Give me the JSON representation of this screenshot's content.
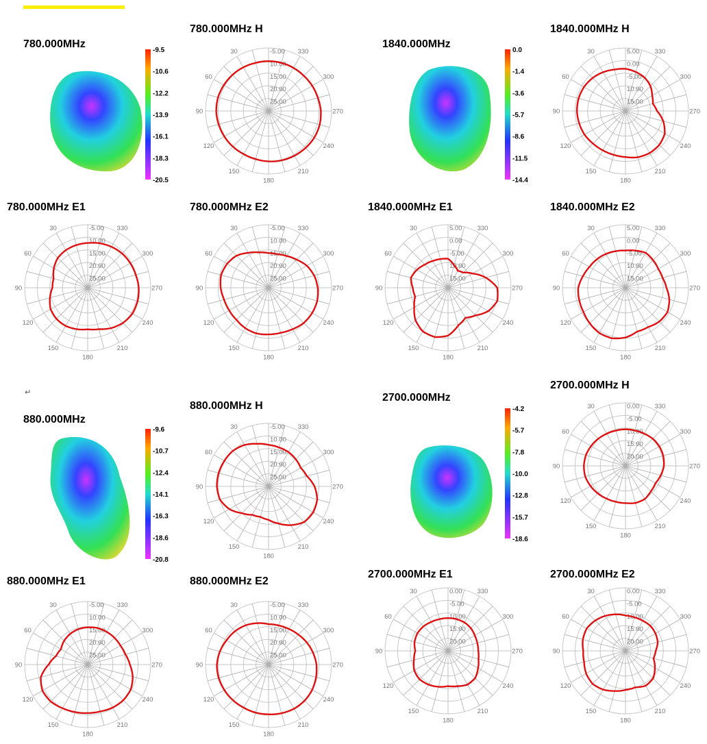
{
  "return_mark": "↵",
  "chart_data": [
    {
      "type": "polar",
      "title": "780.000MHz  H",
      "rlabels": [
        "-5.00",
        "10.00",
        "15.00",
        "20.00",
        "25.00"
      ],
      "angles": [
        "30",
        "330",
        "60",
        "300",
        "90",
        "270",
        "120",
        "240",
        "150",
        "210",
        "180"
      ],
      "radii": [
        0.79,
        0.79,
        0.8,
        0.81,
        0.82,
        0.83,
        0.83,
        0.82,
        0.81,
        0.8,
        0.79,
        0.79,
        0.8,
        0.81,
        0.82,
        0.83,
        0.84,
        0.84,
        0.83,
        0.81,
        0.8,
        0.79,
        0.79,
        0.79
      ],
      "color": "#dd1111"
    },
    {
      "type": "polar",
      "title": "1840.000MHz  H",
      "rlabels": [
        "5.00",
        "0.00",
        "-5.00",
        "10.00",
        "15.00"
      ],
      "angles": [
        "30",
        "330",
        "60",
        "300",
        "90",
        "270",
        "120",
        "240",
        "150",
        "210",
        "180"
      ],
      "radii": [
        0.67,
        0.68,
        0.71,
        0.74,
        0.76,
        0.77,
        0.77,
        0.76,
        0.75,
        0.73,
        0.72,
        0.72,
        0.73,
        0.76,
        0.77,
        0.76,
        0.72,
        0.62,
        0.5,
        0.45,
        0.49,
        0.56,
        0.61,
        0.64
      ],
      "color": "#dd1111"
    },
    {
      "type": "polar",
      "title": "780.000MHz  E1",
      "rlabels": [
        "-5.00",
        "10.00",
        "15.00",
        "20.00",
        "25.00"
      ],
      "angles": [
        "30",
        "330",
        "60",
        "300",
        "90",
        "270",
        "120",
        "240",
        "150",
        "210",
        "180"
      ],
      "radii": [
        0.71,
        0.7,
        0.69,
        0.67,
        0.62,
        0.56,
        0.56,
        0.62,
        0.68,
        0.7,
        0.7,
        0.68,
        0.66,
        0.68,
        0.74,
        0.79,
        0.82,
        0.82,
        0.81,
        0.79,
        0.78,
        0.77,
        0.75,
        0.73
      ],
      "color": "#dd1111"
    },
    {
      "type": "polar",
      "title": "780.000MHz  E2",
      "rlabels": [
        "-5.00",
        "10.00",
        "15.00",
        "20.00",
        "25.00"
      ],
      "angles": [
        "30",
        "330",
        "60",
        "300",
        "90",
        "270",
        "120",
        "240",
        "150",
        "210",
        "180"
      ],
      "radii": [
        0.55,
        0.58,
        0.64,
        0.72,
        0.76,
        0.78,
        0.76,
        0.73,
        0.72,
        0.72,
        0.74,
        0.75,
        0.74,
        0.74,
        0.76,
        0.79,
        0.8,
        0.8,
        0.78,
        0.75,
        0.7,
        0.63,
        0.58,
        0.55
      ],
      "color": "#dd1111"
    },
    {
      "type": "polar",
      "title": "1840.000MHz  E1",
      "rlabels": [
        "5.00",
        "0.00",
        "-5.00",
        "10.00",
        "15.00"
      ],
      "angles": [
        "30",
        "330",
        "60",
        "300",
        "90",
        "270",
        "120",
        "240",
        "150",
        "210",
        "180"
      ],
      "radii": [
        0.46,
        0.47,
        0.49,
        0.52,
        0.57,
        0.61,
        0.56,
        0.54,
        0.62,
        0.73,
        0.8,
        0.81,
        0.76,
        0.62,
        0.55,
        0.62,
        0.74,
        0.81,
        0.78,
        0.62,
        0.45,
        0.34,
        0.31,
        0.37
      ],
      "color": "#dd1111"
    },
    {
      "type": "polar",
      "title": "1840.000MHz  E2",
      "rlabels": [
        "5.00",
        "0.00",
        "-5.00",
        "10.00",
        "15.00"
      ],
      "angles": [
        "30",
        "330",
        "60",
        "300",
        "90",
        "270",
        "120",
        "240",
        "150",
        "210",
        "180"
      ],
      "radii": [
        0.59,
        0.6,
        0.62,
        0.64,
        0.66,
        0.7,
        0.75,
        0.76,
        0.77,
        0.8,
        0.83,
        0.83,
        0.79,
        0.72,
        0.72,
        0.76,
        0.77,
        0.72,
        0.65,
        0.61,
        0.6,
        0.62,
        0.64,
        0.61
      ],
      "color": "#dd1111"
    },
    {
      "type": "polar",
      "title": "880.000MHz  H",
      "rlabels": [
        "-5.00",
        "10.00",
        "15.00",
        "20.00",
        "25.00"
      ],
      "angles": [
        "30",
        "330",
        "60",
        "300",
        "90",
        "270",
        "120",
        "240",
        "150",
        "210",
        "180"
      ],
      "radii": [
        0.66,
        0.7,
        0.76,
        0.8,
        0.81,
        0.82,
        0.82,
        0.8,
        0.72,
        0.6,
        0.52,
        0.5,
        0.53,
        0.61,
        0.71,
        0.8,
        0.82,
        0.8,
        0.73,
        0.63,
        0.59,
        0.61,
        0.63,
        0.64
      ],
      "color": "#dd1111"
    },
    {
      "type": "polar",
      "title": "2700.000MHz  H",
      "rlabels": [
        "0.00",
        "-5.00",
        "10.00",
        "15.00",
        "20.00"
      ],
      "angles": [
        "30",
        "330",
        "60",
        "300",
        "90",
        "270",
        "120",
        "240",
        "150",
        "210",
        "180"
      ],
      "radii": [
        0.58,
        0.58,
        0.59,
        0.61,
        0.63,
        0.65,
        0.66,
        0.66,
        0.64,
        0.62,
        0.6,
        0.59,
        0.59,
        0.61,
        0.61,
        0.57,
        0.55,
        0.58,
        0.61,
        0.62,
        0.62,
        0.61,
        0.59,
        0.58
      ],
      "color": "#dd1111"
    },
    {
      "type": "polar",
      "title": "880.000MHz  E1",
      "rlabels": [
        "-5.00",
        "10.00",
        "15.00",
        "20.00",
        "25.00"
      ],
      "angles": [
        "30",
        "330",
        "60",
        "300",
        "90",
        "270",
        "120",
        "240",
        "150",
        "210",
        "180"
      ],
      "radii": [
        0.59,
        0.58,
        0.56,
        0.53,
        0.49,
        0.52,
        0.62,
        0.77,
        0.83,
        0.83,
        0.8,
        0.78,
        0.77,
        0.77,
        0.79,
        0.8,
        0.79,
        0.74,
        0.67,
        0.62,
        0.6,
        0.6,
        0.6,
        0.6
      ],
      "color": "#dd1111"
    },
    {
      "type": "polar",
      "title": "880.000MHz  E2",
      "rlabels": [
        "-5.00",
        "10.00",
        "15.00",
        "20.00",
        "25.00"
      ],
      "angles": [
        "30",
        "330",
        "60",
        "300",
        "90",
        "270",
        "120",
        "240",
        "150",
        "210",
        "180"
      ],
      "radii": [
        0.64,
        0.68,
        0.72,
        0.75,
        0.77,
        0.8,
        0.82,
        0.82,
        0.81,
        0.8,
        0.79,
        0.79,
        0.79,
        0.8,
        0.81,
        0.81,
        0.8,
        0.78,
        0.76,
        0.73,
        0.7,
        0.67,
        0.65,
        0.64
      ],
      "color": "#dd1111"
    },
    {
      "type": "polar",
      "title": "2700.000MHz  E1",
      "rlabels": [
        "0.00",
        "-5.00",
        "10.00",
        "15.00",
        "20.00"
      ],
      "angles": [
        "30",
        "330",
        "60",
        "300",
        "90",
        "270",
        "120",
        "240",
        "150",
        "210",
        "180"
      ],
      "radii": [
        0.52,
        0.52,
        0.53,
        0.55,
        0.56,
        0.55,
        0.52,
        0.56,
        0.62,
        0.64,
        0.62,
        0.59,
        0.56,
        0.58,
        0.62,
        0.61,
        0.55,
        0.5,
        0.48,
        0.48,
        0.49,
        0.51,
        0.52,
        0.52
      ],
      "color": "#dd1111"
    },
    {
      "type": "polar",
      "title": "2700.000MHz  E2",
      "rlabels": [
        "0.00",
        "-5.00",
        "10.00",
        "15.00",
        "20.00"
      ],
      "angles": [
        "30",
        "330",
        "60",
        "300",
        "90",
        "270",
        "120",
        "240",
        "150",
        "210",
        "180"
      ],
      "radii": [
        0.56,
        0.6,
        0.64,
        0.68,
        0.71,
        0.7,
        0.67,
        0.68,
        0.72,
        0.74,
        0.71,
        0.66,
        0.62,
        0.6,
        0.64,
        0.62,
        0.54,
        0.46,
        0.48,
        0.53,
        0.55,
        0.56,
        0.55,
        0.55
      ],
      "color": "#dd1111"
    }
  ],
  "patterns_3d": [
    {
      "title": "780.000MHz",
      "scale": [
        "-9.5",
        "-10.6",
        "-12.2",
        "-13.9",
        "-16.1",
        "-18.3",
        "-20.5"
      ]
    },
    {
      "title": "1840.000MHz",
      "scale": [
        "0.0",
        "-1.4",
        "-3.6",
        "-5.7",
        "-8.6",
        "-11.5",
        "-14.4"
      ]
    },
    {
      "title": "880.000MHz",
      "scale": [
        "-9.6",
        "-10.7",
        "-12.4",
        "-14.1",
        "-16.3",
        "-18.6",
        "-20.8"
      ]
    },
    {
      "title": "2700.000MHz",
      "scale": [
        "-4.2",
        "-5.7",
        "-7.8",
        "-10.0",
        "-12.8",
        "-15.7",
        "-18.6"
      ]
    }
  ],
  "colors": {
    "trace": "#dd1111",
    "grid": "#c8c8c8",
    "spokes": "#b0b0b0",
    "label": "#777777"
  }
}
